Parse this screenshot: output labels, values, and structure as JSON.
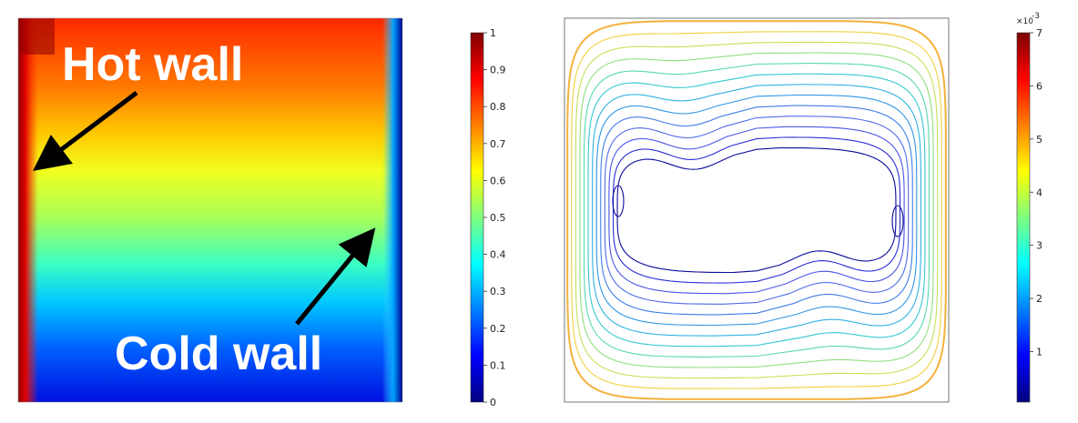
{
  "temperature_panel": {
    "annotations": {
      "hot_wall": "Hot wall",
      "cold_wall": "Cold wall"
    }
  },
  "temperature_colorbar": {
    "ticks": [
      "0",
      "0.1",
      "0.2",
      "0.3",
      "0.4",
      "0.5",
      "0.6",
      "0.7",
      "0.8",
      "0.9",
      "1"
    ]
  },
  "streamline_colorbar": {
    "exponent_label": "×10",
    "exponent_power": "-3",
    "ticks": [
      "1",
      "2",
      "3",
      "4",
      "5",
      "6",
      "7"
    ]
  },
  "colors": {
    "colormap_jet": [
      "#00007f",
      "#0000ff",
      "#007fff",
      "#00ffff",
      "#7fff7f",
      "#ffff00",
      "#ff7f00",
      "#ff0000",
      "#7f0000"
    ],
    "contour_levels": [
      "#0c0a9c",
      "#2a2bd6",
      "#4a55e6",
      "#4f6be8",
      "#3f7ee8",
      "#2f96e6",
      "#2fb3e0",
      "#35c8cf",
      "#57d7b0",
      "#8fe07e",
      "#c5e257",
      "#efd23f",
      "#f4b13b"
    ]
  }
}
